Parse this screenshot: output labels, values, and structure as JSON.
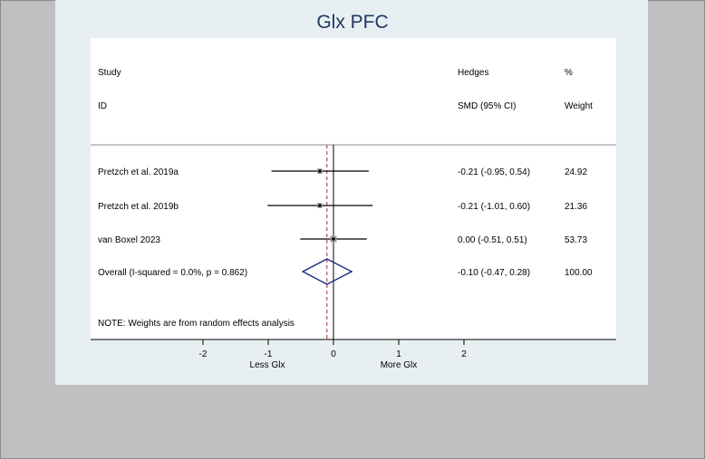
{
  "chart_data": {
    "type": "forest",
    "title": "Glx PFC",
    "columns": {
      "study_header": [
        "Study",
        "ID"
      ],
      "effect_header": [
        "Hedges",
        "SMD (95% CI)"
      ],
      "weight_header": [
        "%",
        "Weight"
      ]
    },
    "studies": [
      {
        "label": "Pretzch et al. 2019a",
        "est": -0.21,
        "lo": -0.95,
        "hi": 0.54,
        "ci_text": "-0.21 (-0.95, 0.54)",
        "weight": 24.92,
        "weight_text": "24.92"
      },
      {
        "label": "Pretzch et al. 2019b",
        "est": -0.21,
        "lo": -1.01,
        "hi": 0.6,
        "ci_text": "-0.21 (-1.01, 0.60)",
        "weight": 21.36,
        "weight_text": "21.36"
      },
      {
        "label": "van Boxel 2023",
        "est": 0.0,
        "lo": -0.51,
        "hi": 0.51,
        "ci_text": "0.00 (-0.51, 0.51)",
        "weight": 53.73,
        "weight_text": "53.73"
      }
    ],
    "overall": {
      "label": "Overall  (I-squared = 0.0%, p = 0.862)",
      "est": -0.1,
      "lo": -0.47,
      "hi": 0.28,
      "ci_text": "-0.10 (-0.47, 0.28)",
      "weight_text": "100.00"
    },
    "note": "NOTE: Weights are from random effects analysis",
    "x_ticks": [
      -2,
      -1,
      0,
      1,
      2
    ],
    "x_tick_labels": [
      "-2",
      "-1",
      "0",
      "1",
      "2"
    ],
    "xlim": [
      -2.0,
      2.0
    ],
    "axis_left_label": "Less Glx",
    "axis_right_label": "More Glx",
    "colors": {
      "outer_bg": "#c0c0c0",
      "graph_region": "#e8eff2",
      "plot_bg": "#ffffff",
      "title": "#1f3864",
      "diamond": "#1a237e",
      "overall_line": "#a52a2a",
      "square": "#a0a0a0"
    }
  }
}
